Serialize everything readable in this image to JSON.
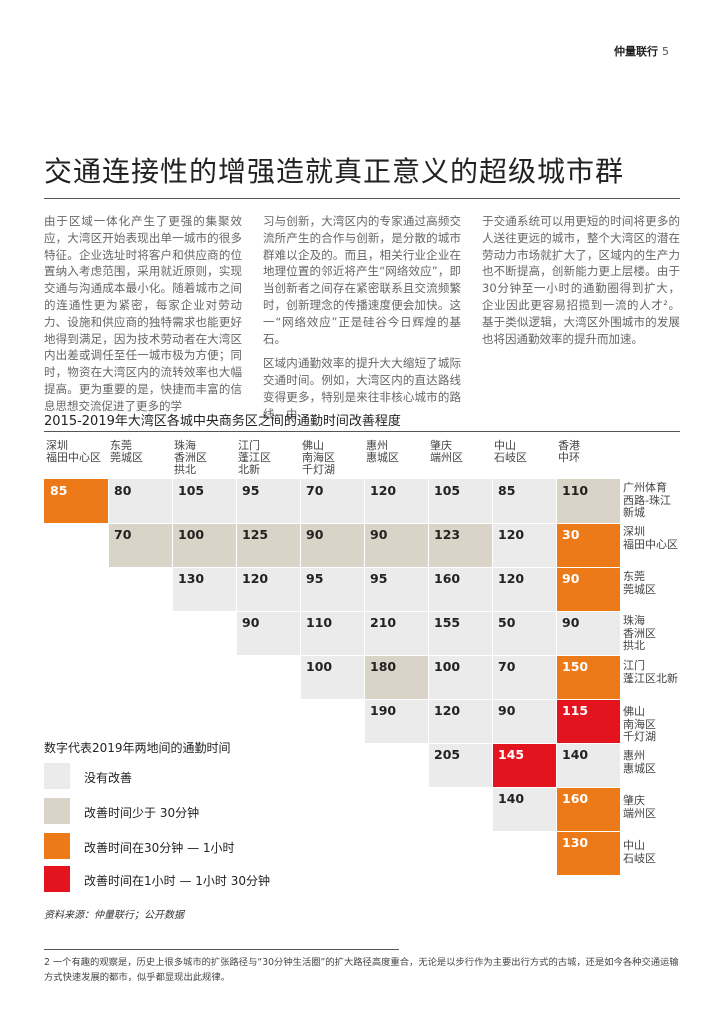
{
  "header": {
    "brand": "仲量联行",
    "page": "5"
  },
  "title": "交通连接性的增强造就真正意义的超级城市群",
  "body": {
    "col1": [
      "由于区域一体化产生了更强的集聚效应，大湾区开始表现出单一城市的很多特征。企业选址时将客户和供应商的位置纳入考虑范围，采用就近原则，实现交通与沟通成本最小化。随着城市之间的连通性更为紧密，每家企业对劳动力、设施和供应商的独特需求也能更好地得到满足，因为技术劳动者在大湾区内出差或调任至任一城市极为方便；同时，物资在大湾区内的流转效率也大幅提高。更为重要的是，快捷而丰富的信息思想交流促进了更多的学"
    ],
    "col2": [
      "习与创新，大湾区内的专家通过高频交流所产生的合作与创新，是分散的城市群难以企及的。而且，相关行业企业在地理位置的邻近将产生“网络效应”，即当创新者之间存在紧密联系且交流频繁时，创新理念的传播速度便会加快。这一“网络效应”正是硅谷今日辉煌的基石。",
      "区域内通勤效率的提升大大缩短了城际交通时间。例如，大湾区内的直达路线变得更多，特别是来往非核心城市的路线。由"
    ],
    "col3": [
      "于交通系统可以用更短的时间将更多的人送往更远的城市，整个大湾区的潜在劳动力市场就扩大了，区域内的生产力也不断提高，创新能力更上层楼。由于30分钟至一小时的通勤圈得到扩大，企业因此更容易招揽到一流的人才²。基于类似逻辑，大湾区外围城市的发展也将因通勤效率的提升而加速。"
    ]
  },
  "chart_data": {
    "type": "table",
    "title": "2015-2019年大湾区各城中央商务区之间的通勤时间改善程度",
    "columns": [
      "深圳\n福田中心区",
      "东莞\n莞城区",
      "珠海\n香洲区\n拱北",
      "江门\n蓬江区\n北新",
      "佛山\n南海区\n千灯湖",
      "惠州\n惠城区",
      "肇庆\n端州区",
      "中山\n石岐区",
      "香港\n中环"
    ],
    "rows": [
      "广州体育\n西路-珠江\n新城",
      "深圳\n福田中心区",
      "东莞\n莞城区",
      "珠海\n香洲区\n拱北",
      "江门\n蓬江区北新",
      "佛山\n南海区\n千灯湖",
      "惠州\n惠城区",
      "肇庆\n端州区",
      "中山\n石岐区"
    ],
    "cells": [
      [
        {
          "v": 85,
          "c": "30to60"
        },
        {
          "v": 80,
          "c": "none"
        },
        {
          "v": 105,
          "c": "none"
        },
        {
          "v": 95,
          "c": "none"
        },
        {
          "v": 70,
          "c": "none"
        },
        {
          "v": 120,
          "c": "none"
        },
        {
          "v": 105,
          "c": "none"
        },
        {
          "v": 85,
          "c": "none"
        },
        {
          "v": 110,
          "c": "lt30"
        }
      ],
      [
        null,
        {
          "v": 70,
          "c": "lt30"
        },
        {
          "v": 100,
          "c": "lt30"
        },
        {
          "v": 125,
          "c": "lt30"
        },
        {
          "v": 90,
          "c": "lt30"
        },
        {
          "v": 90,
          "c": "lt30"
        },
        {
          "v": 123,
          "c": "lt30"
        },
        {
          "v": 120,
          "c": "none"
        },
        {
          "v": 30,
          "c": "30to60"
        }
      ],
      [
        null,
        null,
        {
          "v": 130,
          "c": "none"
        },
        {
          "v": 120,
          "c": "none"
        },
        {
          "v": 95,
          "c": "none"
        },
        {
          "v": 95,
          "c": "none"
        },
        {
          "v": 160,
          "c": "none"
        },
        {
          "v": 120,
          "c": "none"
        },
        {
          "v": 90,
          "c": "30to60"
        }
      ],
      [
        null,
        null,
        null,
        {
          "v": 90,
          "c": "none"
        },
        {
          "v": 110,
          "c": "none"
        },
        {
          "v": 210,
          "c": "none"
        },
        {
          "v": 155,
          "c": "none"
        },
        {
          "v": 50,
          "c": "none"
        },
        {
          "v": 90,
          "c": "none"
        }
      ],
      [
        null,
        null,
        null,
        null,
        {
          "v": 100,
          "c": "none"
        },
        {
          "v": 180,
          "c": "lt30"
        },
        {
          "v": 100,
          "c": "none"
        },
        {
          "v": 70,
          "c": "none"
        },
        {
          "v": 150,
          "c": "30to60"
        }
      ],
      [
        null,
        null,
        null,
        null,
        null,
        {
          "v": 190,
          "c": "none"
        },
        {
          "v": 120,
          "c": "none"
        },
        {
          "v": 90,
          "c": "none"
        },
        {
          "v": 115,
          "c": "60to90"
        }
      ],
      [
        null,
        null,
        null,
        null,
        null,
        null,
        {
          "v": 205,
          "c": "none"
        },
        {
          "v": 145,
          "c": "60to90"
        },
        {
          "v": 140,
          "c": "none"
        }
      ],
      [
        null,
        null,
        null,
        null,
        null,
        null,
        null,
        {
          "v": 140,
          "c": "none"
        },
        {
          "v": 160,
          "c": "30to60"
        }
      ],
      [
        null,
        null,
        null,
        null,
        null,
        null,
        null,
        null,
        {
          "v": 130,
          "c": "30to60"
        }
      ]
    ],
    "legend": {
      "title": "数字代表2019年两地间的通勤时间",
      "items": [
        {
          "key": "none",
          "label": "没有改善",
          "color": "#ebebeb"
        },
        {
          "key": "lt30",
          "label": "改善时间少于 30分钟",
          "color": "#dad3c7"
        },
        {
          "key": "30to60",
          "label": "改善时间在30分钟 — 1小时",
          "color": "#ec7a18"
        },
        {
          "key": "60to90",
          "label": "改善时间在1小时 — 1小时 30分钟",
          "color": "#e3141e"
        }
      ]
    }
  },
  "source": "资料来源：仲量联行；公开数据",
  "footnote": "2 一个有趣的观察是，历史上很多城市的扩张路径与“30分钟生活圈”的扩大路径高度重合，无论是以步行作为主要出行方式的古城，还是如今各种交通运输方式快速发展的都市，似乎都显现出此规律。"
}
